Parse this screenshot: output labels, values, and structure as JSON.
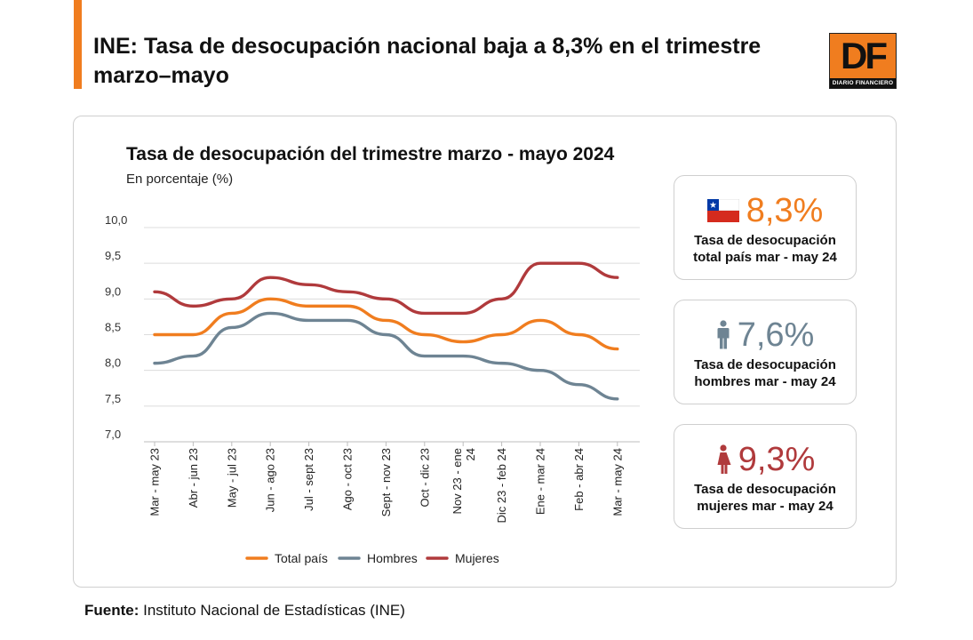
{
  "headline": {
    "line1": "INE: Tasa de desocupación nacional baja a 8,3% en el trimestre",
    "line2": "marzo–mayo"
  },
  "logo": {
    "letters": "DF",
    "name": "DIARIO FINANCIERO"
  },
  "colors": {
    "accent": "#f07d1f",
    "total": "#f07d1f",
    "hombres": "#6e8493",
    "mujeres": "#b03a3c"
  },
  "stats": [
    {
      "icon": "chile-flag-icon",
      "value": "8,3%",
      "line1": "Tasa de desocupación",
      "line2": "total país mar - may 24"
    },
    {
      "icon": "man-icon",
      "value": "7,6%",
      "line1": "Tasa de desocupación",
      "line2": "hombres mar - may 24"
    },
    {
      "icon": "woman-icon",
      "value": "9,3%",
      "line1": "Tasa de desocupación",
      "line2": "mujeres mar - may 24"
    }
  ],
  "source": {
    "label": "Fuente:",
    "text": " Instituto Nacional de Estadísticas (INE)"
  },
  "chart_data": {
    "type": "line",
    "title": "Tasa de desocupación del trimestre marzo - mayo 2024",
    "subtitle": "En porcentaje (%)",
    "categories": [
      [
        "Mar - may 23"
      ],
      [
        "Abr - jun 23"
      ],
      [
        "May - jul 23"
      ],
      [
        "Jun - ago 23"
      ],
      [
        "Jul - sept 23"
      ],
      [
        "Ago - oct 23"
      ],
      [
        "Sept - nov 23"
      ],
      [
        "Oct - dic 23"
      ],
      [
        "Nov 23 - ene",
        "24"
      ],
      [
        "Dic 23 - feb 24"
      ],
      [
        "Ene - mar 24"
      ],
      [
        "Feb - abr 24"
      ],
      [
        "Mar - may 24"
      ]
    ],
    "yticks": [
      "10,0",
      "9,5",
      "9,0",
      "8,5",
      "8,0",
      "7,5",
      "7,0"
    ],
    "ylim": [
      7.0,
      10.0
    ],
    "grid": true,
    "legend_position": "bottom",
    "series": [
      {
        "name": "Total país",
        "color": "#f07d1f",
        "values": [
          8.5,
          8.5,
          8.8,
          9.0,
          8.9,
          8.9,
          8.7,
          8.5,
          8.4,
          8.5,
          8.7,
          8.5,
          8.3
        ]
      },
      {
        "name": "Hombres",
        "color": "#6e8493",
        "values": [
          8.1,
          8.2,
          8.6,
          8.8,
          8.7,
          8.7,
          8.5,
          8.2,
          8.2,
          8.1,
          8.0,
          7.8,
          7.6
        ]
      },
      {
        "name": "Mujeres",
        "color": "#b03a3c",
        "values": [
          9.1,
          8.9,
          9.0,
          9.3,
          9.2,
          9.1,
          9.0,
          8.8,
          8.8,
          9.0,
          9.5,
          9.5,
          9.3
        ]
      }
    ]
  }
}
